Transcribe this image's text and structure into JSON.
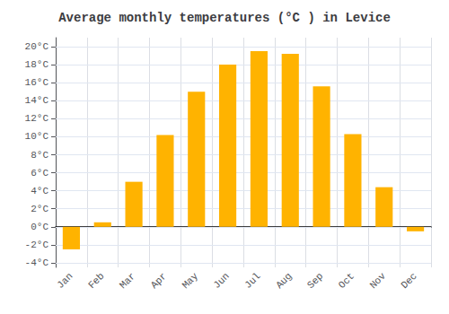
{
  "chart_data": {
    "type": "bar",
    "title": "Average monthly temperatures (°C ) in Levice",
    "categories": [
      "Jan",
      "Feb",
      "Mar",
      "Apr",
      "May",
      "Jun",
      "Jul",
      "Aug",
      "Sep",
      "Oct",
      "Nov",
      "Dec"
    ],
    "values": [
      -2.5,
      0.5,
      5.0,
      10.2,
      15.0,
      18.0,
      19.5,
      19.2,
      15.6,
      10.3,
      4.4,
      -0.5
    ],
    "color": "#FFB300",
    "ylim": [
      -4.5,
      21
    ],
    "yticks": [
      {
        "value": -4,
        "label": "-4°C"
      },
      {
        "value": -2,
        "label": "-2°C"
      },
      {
        "value": 0,
        "label": "0°C"
      },
      {
        "value": 2,
        "label": "2°C"
      },
      {
        "value": 4,
        "label": "4°C"
      },
      {
        "value": 6,
        "label": "6°C"
      },
      {
        "value": 8,
        "label": "8°C"
      },
      {
        "value": 10,
        "label": "10°C"
      },
      {
        "value": 12,
        "label": "12°C"
      },
      {
        "value": 14,
        "label": "14°C"
      },
      {
        "value": 16,
        "label": "16°C"
      },
      {
        "value": 18,
        "label": "18°C"
      },
      {
        "value": 20,
        "label": "20°C"
      }
    ],
    "grid": true
  }
}
